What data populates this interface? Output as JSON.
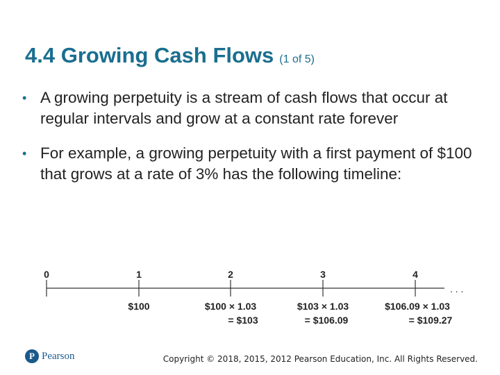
{
  "slide": {
    "title": "4.4 Growing Cash Flows",
    "title_suffix": "(1 of 5)",
    "bullets": [
      "A growing perpetuity is a stream of cash flows that occur at regular intervals and grow at a constant rate forever",
      "For example, a growing perpetuity with a first payment of $100 that grows at a rate of 3% has the following timeline:"
    ]
  },
  "timeline": {
    "periods": [
      "0",
      "1",
      "2",
      "3",
      "4"
    ],
    "ellipsis": ". . .",
    "cash_flows": [
      {
        "period": "1",
        "line1": "$100",
        "line2": ""
      },
      {
        "period": "2",
        "line1": "$100 × 1.03",
        "line2": "= $103"
      },
      {
        "period": "3",
        "line1": "$103 × 1.03",
        "line2": "= $106.09"
      },
      {
        "period": "4",
        "line1": "$106.09 × 1.03",
        "line2": "= $109.27"
      }
    ]
  },
  "footer": {
    "logo_text": "Pearson",
    "logo_mark": "P",
    "copyright": "Copyright © 2018, 2015, 2012 Pearson Education, Inc. All Rights Reserved."
  },
  "colors": {
    "title": "#1a6e8f",
    "text": "#222222",
    "brand": "#1a5a8a"
  }
}
